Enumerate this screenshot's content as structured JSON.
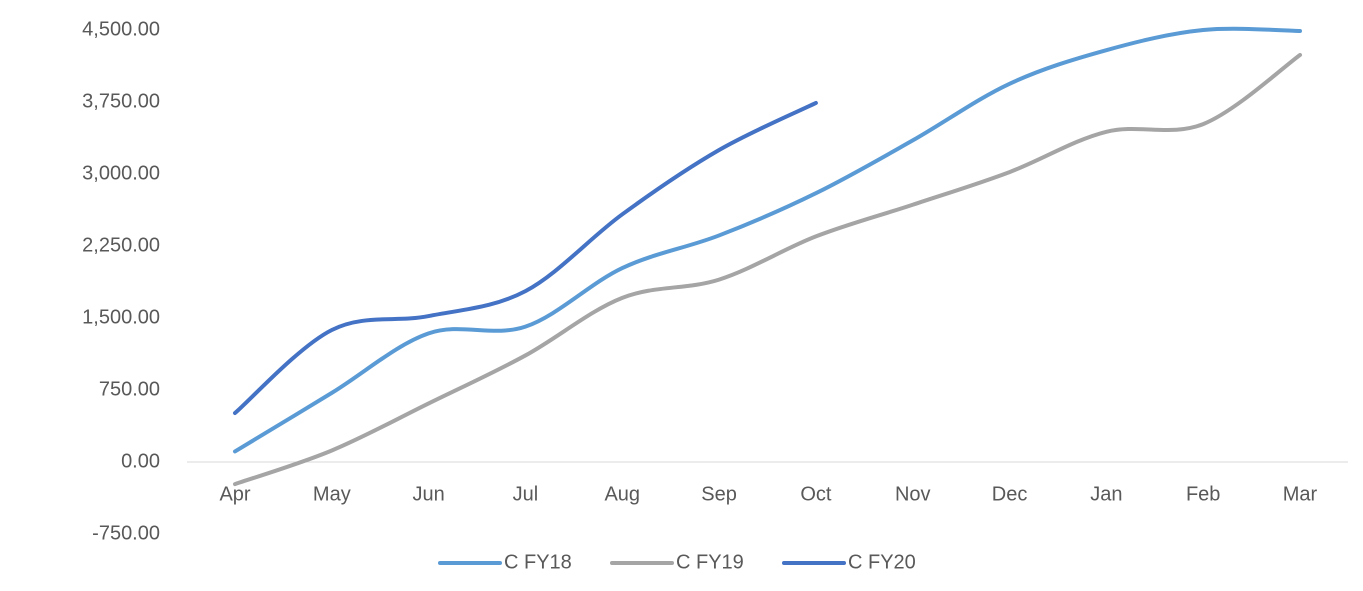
{
  "chart_data": {
    "type": "line",
    "categories": [
      "Apr",
      "May",
      "Jun",
      "Jul",
      "Aug",
      "Sep",
      "Oct",
      "Nov",
      "Dec",
      "Jan",
      "Feb",
      "Mar"
    ],
    "series": [
      {
        "name": "C FY18",
        "color": "#5b9bd5",
        "values": [
          110,
          720,
          1340,
          1410,
          2020,
          2360,
          2800,
          3350,
          3940,
          4290,
          4500,
          4490
        ]
      },
      {
        "name": "C FY19",
        "color": "#a5a5a5",
        "values": [
          -230,
          120,
          610,
          1110,
          1710,
          1900,
          2350,
          2680,
          3020,
          3440,
          3520,
          4240
        ]
      },
      {
        "name": "C FY20",
        "color": "#4472c4",
        "values": [
          510,
          1375,
          1520,
          1780,
          2580,
          3250,
          3740,
          null,
          null,
          null,
          null,
          null
        ]
      }
    ],
    "ylim": [
      -750,
      4500
    ],
    "yticks": [
      {
        "value": -750,
        "label": "-750.00"
      },
      {
        "value": 0,
        "label": "0.00"
      },
      {
        "value": 750,
        "label": "750.00"
      },
      {
        "value": 1500,
        "label": "1,500.00"
      },
      {
        "value": 2250,
        "label": "2,250.00"
      },
      {
        "value": 3000,
        "label": "3,000.00"
      },
      {
        "value": 3750,
        "label": "3,750.00"
      },
      {
        "value": 4500,
        "label": "4,500.00"
      }
    ],
    "smooth": true,
    "grid": false,
    "legend": "bottom"
  }
}
